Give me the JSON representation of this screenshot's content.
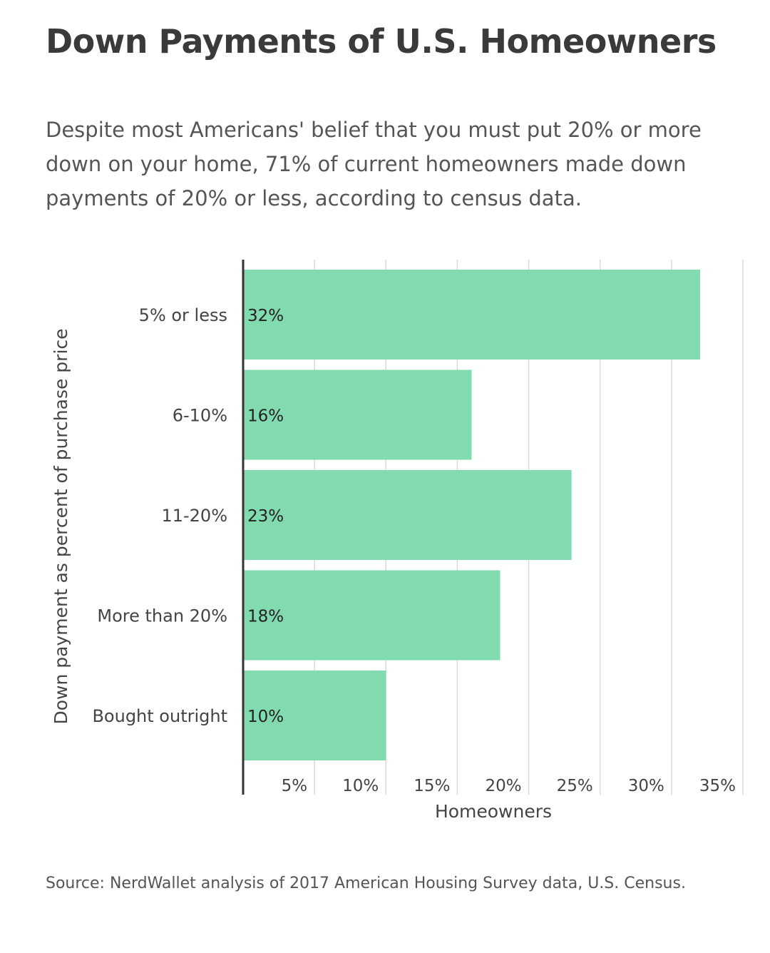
{
  "title": "Down Payments of U.S. Homeowners",
  "subtitle": "Despite most Americans' belief that you must put 20% or more down on your home, 71% of current homeowners made down payments of 20% or less, according to census data.",
  "source": "Source: NerdWallet analysis of 2017 American Housing Survey data, U.S. Census.",
  "colors": {
    "bar": "#82daaf",
    "grid": "#d9d9d9",
    "axis": "#333333",
    "text": "#444444"
  },
  "chart_data": {
    "type": "bar",
    "orientation": "horizontal",
    "categories": [
      "5% or less",
      "6-10%",
      "11-20%",
      "More than 20%",
      "Bought outright"
    ],
    "values": [
      32,
      16,
      23,
      18,
      10
    ],
    "data_labels": [
      "32%",
      "16%",
      "23%",
      "18%",
      "10%"
    ],
    "xlabel": "Homeowners",
    "ylabel": "Down payment as percent of purchase price",
    "xlim": [
      0,
      35
    ],
    "xticks": [
      5,
      10,
      15,
      20,
      25,
      30,
      35
    ],
    "xtick_labels": [
      "5%",
      "10%",
      "15%",
      "20%",
      "25%",
      "30%",
      "35%"
    ],
    "grid": true,
    "legend": "none"
  }
}
